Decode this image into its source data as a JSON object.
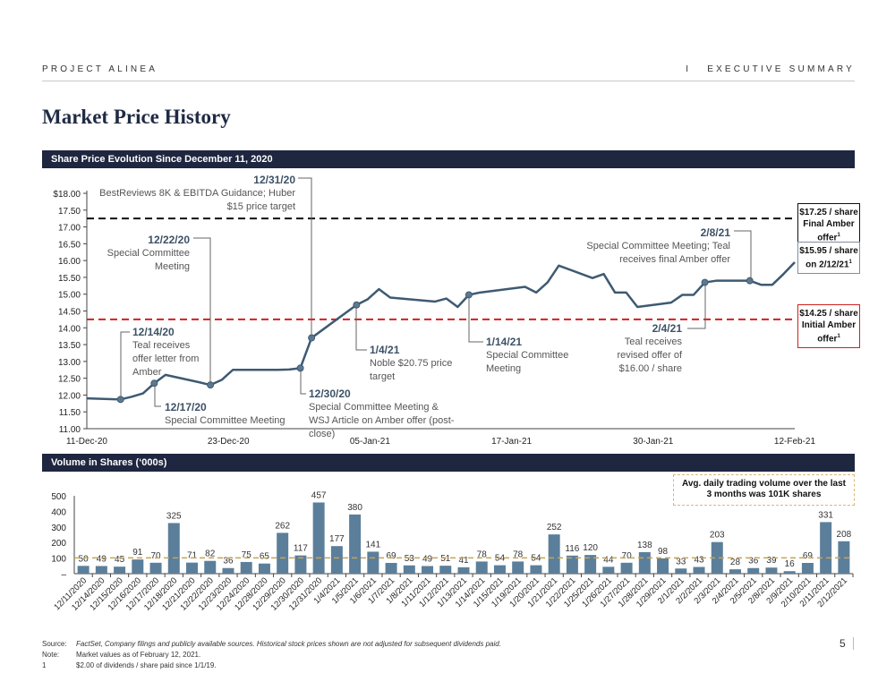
{
  "header": {
    "project": "PROJECT ALINEA",
    "section": "I   EXECUTIVE SUMMARY"
  },
  "title": "Market Price History",
  "sections": {
    "price": "Share Price Evolution Since December 11, 2020",
    "volume": "Volume in Shares (‘000s)"
  },
  "annotations": [
    {
      "date": "12/31/20",
      "text": "BestReviews 8K & EBITDA Guidance; Huber $15 price target"
    },
    {
      "date": "12/22/20",
      "text": "Special Committee Meeting"
    },
    {
      "date": "12/14/20",
      "text": "Teal receives offer letter from Amber"
    },
    {
      "date": "12/17/20",
      "text": "Special Committee Meeting"
    },
    {
      "date": "12/30/20",
      "text": "Special Committee Meeting & WSJ Article on Amber offer (post-close)"
    },
    {
      "date": "1/4/21",
      "text": "Noble $20.75 price target"
    },
    {
      "date": "1/14/21",
      "text": "Special Committee Meeting"
    },
    {
      "date": "2/4/21",
      "text": "Teal receives revised offer of $16.00 / share"
    },
    {
      "date": "2/8/21",
      "text": "Special Committee Meeting; Teal receives final Amber offer"
    }
  ],
  "callouts": {
    "final": {
      "line1": "$17.25 / share",
      "line2": "Final Amber offer",
      "sup": "1"
    },
    "current": {
      "line1": "$15.95 / share",
      "line2": "on 2/12/21",
      "sup": "1"
    },
    "initial": {
      "line1": "$14.25 / share",
      "line2": "Initial Amber offer",
      "sup": "1"
    }
  },
  "volume_note": "Avg. daily trading volume over the last 3 months was 101K shares",
  "footnotes": [
    {
      "label": "Source:",
      "text": "FactSet, Company filings and publicly available sources. Historical stock prices shown are not adjusted for subsequent dividends paid."
    },
    {
      "label": "Note:",
      "text": "Market values as of February 12, 2021."
    },
    {
      "label": "1",
      "text": "$2.00 of dividends / share paid since 1/1/19."
    }
  ],
  "page_number": "5",
  "colors": {
    "line": "#3e5a72",
    "bar": "#5b7f9b",
    "final_offer": "#111111",
    "initial_offer": "#d02020",
    "avg": "#c9a35a",
    "section": "#1e2640"
  },
  "chart_data": [
    {
      "type": "line",
      "ylim": [
        11,
        18
      ],
      "yticks": [
        "$18.00",
        "17.50",
        "17.00",
        "16.50",
        "16.00",
        "15.50",
        "15.00",
        "14.50",
        "14.00",
        "13.50",
        "13.00",
        "12.50",
        "12.00",
        "11.50",
        "11.00"
      ],
      "xticks": [
        "11-Dec-20",
        "23-Dec-20",
        "05-Jan-21",
        "17-Jan-21",
        "30-Jan-21",
        "12-Feb-21"
      ],
      "x": [
        "12/11/2020",
        "12/14/2020",
        "12/15/2020",
        "12/16/2020",
        "12/17/2020",
        "12/18/2020",
        "12/21/2020",
        "12/22/2020",
        "12/23/2020",
        "12/24/2020",
        "12/28/2020",
        "12/29/2020",
        "12/30/2020",
        "12/31/2020",
        "1/4/2021",
        "1/5/2021",
        "1/6/2021",
        "1/7/2021",
        "1/8/2021",
        "1/11/2021",
        "1/12/2021",
        "1/13/2021",
        "1/14/2021",
        "1/15/2021",
        "1/19/2021",
        "1/20/2021",
        "1/21/2021",
        "1/22/2021",
        "1/25/2021",
        "1/26/2021",
        "1/27/2021",
        "1/28/2021",
        "1/29/2021",
        "2/1/2021",
        "2/2/2021",
        "2/3/2021",
        "2/4/2021",
        "2/5/2021",
        "2/8/2021",
        "2/9/2021",
        "2/10/2021",
        "2/11/2021",
        "2/12/2021"
      ],
      "values": [
        11.9,
        11.87,
        11.95,
        12.05,
        12.35,
        12.6,
        12.38,
        12.3,
        12.45,
        12.75,
        12.75,
        12.76,
        12.8,
        13.7,
        14.68,
        14.85,
        15.15,
        14.9,
        14.87,
        14.78,
        14.87,
        14.62,
        14.98,
        15.05,
        15.22,
        15.05,
        15.35,
        15.85,
        15.48,
        15.6,
        15.05,
        15.05,
        14.62,
        14.75,
        14.98,
        14.98,
        15.35,
        15.4,
        15.4,
        15.28,
        15.28,
        15.6,
        15.95
      ],
      "reference_lines": [
        {
          "value": 17.25,
          "color": "#111111"
        },
        {
          "value": 14.25,
          "color": "#d02020"
        }
      ],
      "markers": [
        "12/14/2020",
        "12/17/2020",
        "12/22/2020",
        "12/30/2020",
        "12/31/2020",
        "1/4/2021",
        "1/14/2021",
        "2/4/2021",
        "2/8/2021"
      ]
    },
    {
      "type": "bar",
      "ylim": [
        0,
        500
      ],
      "yticks": [
        "500",
        "400",
        "300",
        "200",
        "100",
        "–"
      ],
      "categories": [
        "12/11/2020",
        "12/14/2020",
        "12/15/2020",
        "12/16/2020",
        "12/17/2020",
        "12/18/2020",
        "12/21/2020",
        "12/22/2020",
        "12/23/2020",
        "12/24/2020",
        "12/28/2020",
        "12/29/2020",
        "12/30/2020",
        "12/31/2020",
        "1/4/2021",
        "1/5/2021",
        "1/6/2021",
        "1/7/2021",
        "1/8/2021",
        "1/11/2021",
        "1/12/2021",
        "1/13/2021",
        "1/14/2021",
        "1/15/2021",
        "1/19/2021",
        "1/20/2021",
        "1/21/2021",
        "1/22/2021",
        "1/25/2021",
        "1/26/2021",
        "1/27/2021",
        "1/28/2021",
        "1/29/2021",
        "2/1/2021",
        "2/2/2021",
        "2/3/2021",
        "2/4/2021",
        "2/5/2021",
        "2/8/2021",
        "2/9/2021",
        "2/10/2021",
        "2/11/2021",
        "2/12/2021"
      ],
      "values": [
        50,
        49,
        45,
        91,
        70,
        325,
        71,
        82,
        36,
        75,
        65,
        262,
        117,
        457,
        177,
        380,
        141,
        69,
        53,
        49,
        51,
        41,
        78,
        54,
        78,
        54,
        252,
        116,
        120,
        44,
        70,
        138,
        98,
        33,
        43,
        203,
        28,
        36,
        39,
        16,
        69,
        331,
        208
      ],
      "average_line": 101
    }
  ]
}
